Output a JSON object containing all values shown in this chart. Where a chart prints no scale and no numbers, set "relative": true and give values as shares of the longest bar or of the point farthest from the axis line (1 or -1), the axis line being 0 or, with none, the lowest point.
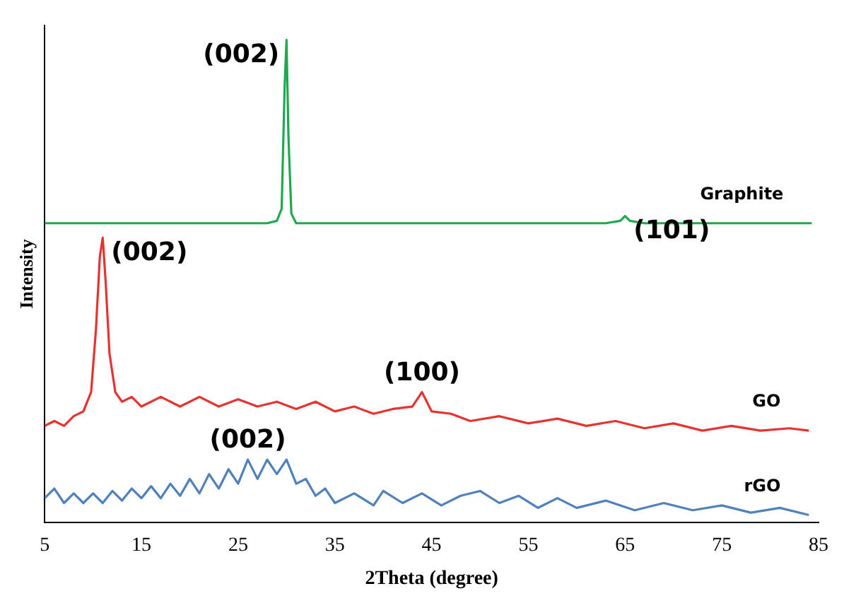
{
  "chart_data": {
    "type": "line",
    "relative": true,
    "xlabel": "2Theta (degree)",
    "ylabel": "Intensity",
    "xlim": [
      5,
      85
    ],
    "xticks": [
      5,
      15,
      25,
      35,
      45,
      55,
      65,
      75,
      85
    ],
    "grid": false,
    "legend": false,
    "marker": "none",
    "line_style": "solid",
    "series": [
      {
        "name": "Graphite",
        "color": "#1fa84f",
        "x": [
          5,
          10,
          15,
          20,
          25,
          28,
          29,
          29.5,
          29.8,
          30,
          30.2,
          30.5,
          31,
          35,
          45,
          55,
          63,
          64.5,
          65,
          65.5,
          67,
          75,
          84.3
        ],
        "values": [
          0.62,
          0.62,
          0.62,
          0.62,
          0.62,
          0.62,
          0.625,
          0.65,
          0.9,
          1,
          0.8,
          0.64,
          0.62,
          0.62,
          0.62,
          0.62,
          0.62,
          0.625,
          0.635,
          0.625,
          0.62,
          0.62,
          0.62
        ]
      },
      {
        "name": "GO",
        "color": "#e8322f",
        "x": [
          5,
          6,
          7,
          8,
          9,
          9.8,
          10.3,
          10.7,
          11,
          11.3,
          11.7,
          12.3,
          13,
          14,
          15,
          17,
          19,
          21,
          23,
          25,
          27,
          29,
          31,
          33,
          35,
          37,
          39,
          41,
          43,
          44,
          45,
          47,
          49,
          52,
          55,
          58,
          61,
          64,
          67,
          70,
          73,
          76,
          79,
          82,
          84
        ],
        "values": [
          0.2,
          0.21,
          0.2,
          0.22,
          0.23,
          0.27,
          0.4,
          0.55,
          0.59,
          0.5,
          0.35,
          0.27,
          0.25,
          0.26,
          0.24,
          0.26,
          0.24,
          0.26,
          0.24,
          0.255,
          0.24,
          0.25,
          0.235,
          0.25,
          0.23,
          0.24,
          0.225,
          0.235,
          0.24,
          0.27,
          0.23,
          0.225,
          0.21,
          0.22,
          0.205,
          0.215,
          0.2,
          0.21,
          0.195,
          0.205,
          0.19,
          0.2,
          0.19,
          0.195,
          0.19
        ]
      },
      {
        "name": "rGO",
        "color": "#4f81bd",
        "x": [
          5,
          6,
          7,
          8,
          9,
          10,
          11,
          12,
          13,
          14,
          15,
          16,
          17,
          18,
          19,
          20,
          21,
          22,
          23,
          24,
          25,
          26,
          27,
          28,
          29,
          30,
          31,
          32,
          33,
          34,
          35,
          37,
          39,
          40,
          42,
          44,
          46,
          48,
          50,
          52,
          54,
          56,
          58,
          60,
          63,
          66,
          69,
          72,
          75,
          78,
          81,
          84
        ],
        "values": [
          0.05,
          0.07,
          0.04,
          0.06,
          0.04,
          0.06,
          0.04,
          0.065,
          0.045,
          0.07,
          0.05,
          0.075,
          0.05,
          0.08,
          0.055,
          0.09,
          0.06,
          0.1,
          0.07,
          0.11,
          0.08,
          0.13,
          0.09,
          0.13,
          0.1,
          0.13,
          0.08,
          0.09,
          0.055,
          0.07,
          0.04,
          0.06,
          0.035,
          0.065,
          0.04,
          0.06,
          0.035,
          0.055,
          0.065,
          0.04,
          0.055,
          0.03,
          0.05,
          0.03,
          0.045,
          0.025,
          0.04,
          0.025,
          0.035,
          0.02,
          0.03,
          0.015
        ]
      }
    ],
    "annotations": [
      {
        "text": "(002)",
        "x": 30,
        "y": 1
      },
      {
        "text": "(101)",
        "x": 65,
        "y": 0.635
      },
      {
        "text": "(002)",
        "x": 11,
        "y": 0.59
      },
      {
        "text": "(100)",
        "x": 44,
        "y": 0.27
      },
      {
        "text": "(002)",
        "x": 26,
        "y": 0.13
      }
    ]
  }
}
